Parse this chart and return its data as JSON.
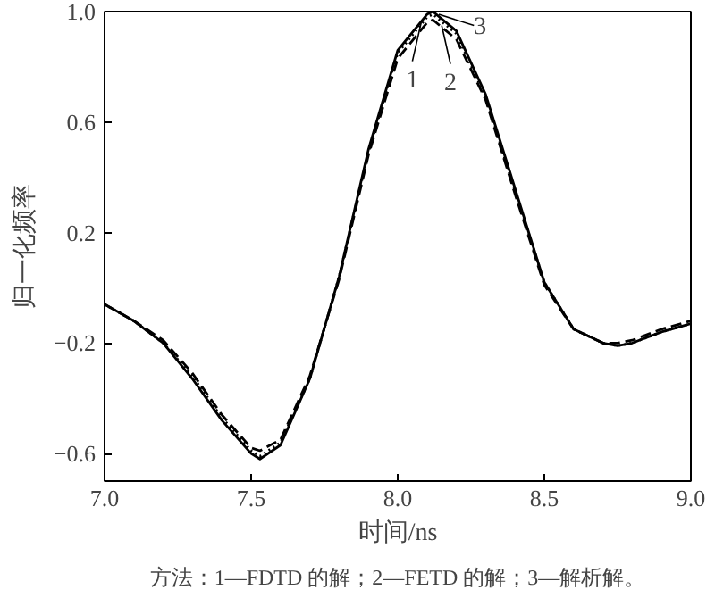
{
  "chart_data": {
    "type": "line",
    "xlabel": "时间/ns",
    "ylabel": "归一化频率",
    "xlim": [
      7.0,
      9.0
    ],
    "ylim": [
      -0.7,
      1.0
    ],
    "xticks": [
      {
        "value": 7.0,
        "label": "7.0"
      },
      {
        "value": 7.5,
        "label": "7.5"
      },
      {
        "value": 8.0,
        "label": "8.0"
      },
      {
        "value": 8.5,
        "label": "8.5"
      },
      {
        "value": 9.0,
        "label": "9.0"
      }
    ],
    "yticks": [
      {
        "value": -0.6,
        "label": "−0.6"
      },
      {
        "value": -0.2,
        "label": "−0.2"
      },
      {
        "value": 0.2,
        "label": "0.2"
      },
      {
        "value": 0.6,
        "label": "0.6"
      },
      {
        "value": 1.0,
        "label": "1.0"
      }
    ],
    "x": [
      7.0,
      7.1,
      7.2,
      7.3,
      7.4,
      7.5,
      7.53,
      7.6,
      7.7,
      7.8,
      7.9,
      8.0,
      8.1,
      8.12,
      8.2,
      8.3,
      8.4,
      8.5,
      8.6,
      8.7,
      8.75,
      8.8,
      8.9,
      9.0
    ],
    "series": [
      {
        "color": "#000000",
        "line_style": "solid",
        "values": [
          -0.06,
          -0.12,
          -0.2,
          -0.33,
          -0.48,
          -0.6,
          -0.62,
          -0.57,
          -0.33,
          0.04,
          0.5,
          0.86,
          0.99,
          1.0,
          0.93,
          0.7,
          0.36,
          0.02,
          -0.15,
          -0.2,
          -0.21,
          -0.2,
          -0.16,
          -0.13
        ]
      },
      {
        "color": "#000000",
        "line_style": "dashed",
        "values": [
          -0.06,
          -0.12,
          -0.19,
          -0.31,
          -0.46,
          -0.58,
          -0.59,
          -0.55,
          -0.32,
          0.03,
          0.48,
          0.83,
          0.96,
          0.97,
          0.9,
          0.68,
          0.34,
          0.01,
          -0.15,
          -0.2,
          -0.2,
          -0.19,
          -0.15,
          -0.12
        ]
      },
      {
        "color": "#000000",
        "line_style": "dotted",
        "values": [
          -0.06,
          -0.12,
          -0.2,
          -0.32,
          -0.47,
          -0.59,
          -0.61,
          -0.56,
          -0.33,
          0.04,
          0.49,
          0.85,
          0.98,
          0.99,
          0.92,
          0.69,
          0.35,
          0.02,
          -0.15,
          -0.2,
          -0.21,
          -0.2,
          -0.16,
          -0.13
        ]
      }
    ],
    "annotations": [
      {
        "text": "1",
        "x": 8.08,
        "y": 0.96
      },
      {
        "text": "2",
        "x": 8.15,
        "y": 0.95
      },
      {
        "text": "3",
        "x": 8.14,
        "y": 0.99
      },
      "方法：1—FDTD 的解；2—FETD 的解；3—解析解。"
    ],
    "grid": false
  }
}
